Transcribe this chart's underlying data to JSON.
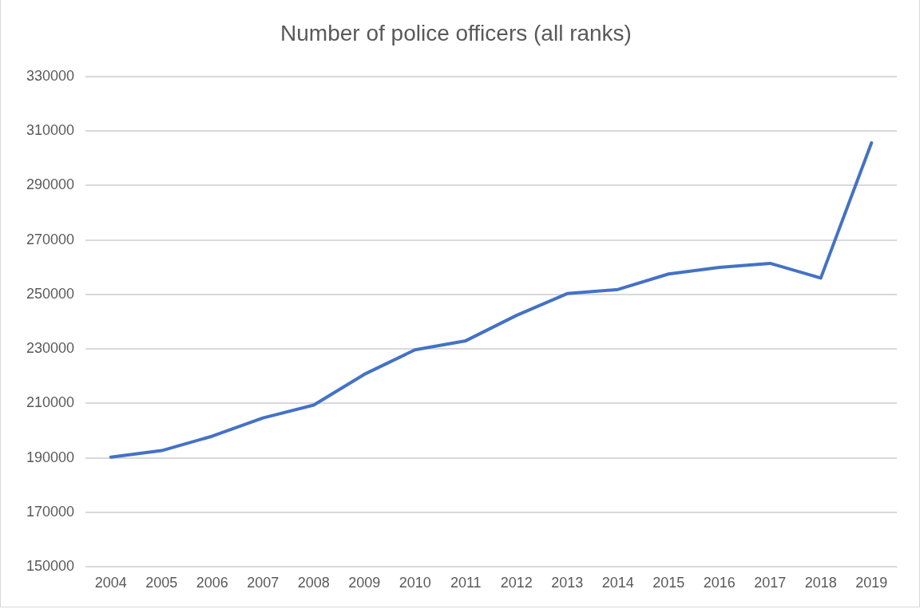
{
  "chart_data": {
    "type": "line",
    "title": "Number of police officers (all ranks)",
    "categories": [
      "2004",
      "2005",
      "2006",
      "2007",
      "2008",
      "2009",
      "2010",
      "2011",
      "2012",
      "2013",
      "2014",
      "2015",
      "2016",
      "2017",
      "2018",
      "2019"
    ],
    "series": [
      {
        "color": "#4472c4",
        "values": [
          190300,
          192700,
          198000,
          204700,
          209400,
          220700,
          229700,
          233000,
          242300,
          250300,
          251800,
          257500,
          259900,
          261400,
          256000,
          305600
        ]
      }
    ],
    "ylim": [
      150000,
      330000
    ],
    "yticks": [
      150000,
      170000,
      190000,
      210000,
      230000,
      250000,
      270000,
      290000,
      310000,
      330000
    ],
    "grid": "y",
    "legend": false,
    "marker": "none",
    "line_style": "solid"
  }
}
